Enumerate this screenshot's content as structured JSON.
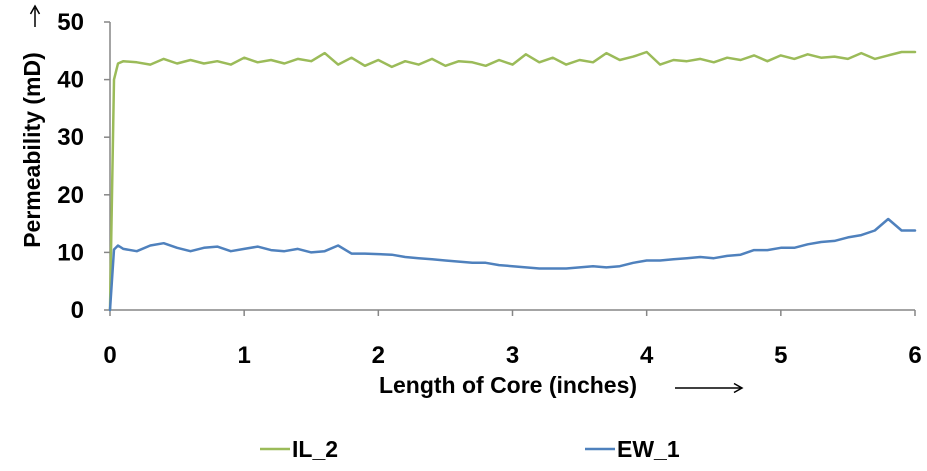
{
  "chart_data": {
    "type": "line",
    "title": "",
    "xlabel": "Length of Core (inches)",
    "ylabel": "Permeability (mD)",
    "xlim": [
      0,
      6
    ],
    "ylim": [
      0,
      50
    ],
    "xticks": [
      0,
      1,
      2,
      3,
      4,
      5,
      6
    ],
    "yticks": [
      0,
      10,
      20,
      30,
      40,
      50
    ],
    "grid": false,
    "legend_position": "bottom",
    "colors": {
      "IL_2": "#9bbb59",
      "EW_1": "#4f81bd"
    },
    "series": [
      {
        "name": "IL_2",
        "color": "#9bbb59",
        "x": [
          0,
          0.03,
          0.06,
          0.1,
          0.2,
          0.3,
          0.4,
          0.5,
          0.6,
          0.7,
          0.8,
          0.9,
          1.0,
          1.1,
          1.2,
          1.3,
          1.4,
          1.5,
          1.6,
          1.7,
          1.8,
          1.9,
          2.0,
          2.1,
          2.2,
          2.3,
          2.4,
          2.5,
          2.6,
          2.7,
          2.8,
          2.9,
          3.0,
          3.1,
          3.2,
          3.3,
          3.4,
          3.5,
          3.6,
          3.7,
          3.8,
          3.9,
          4.0,
          4.1,
          4.2,
          4.3,
          4.4,
          4.5,
          4.6,
          4.7,
          4.8,
          4.9,
          5.0,
          5.1,
          5.2,
          5.3,
          5.4,
          5.5,
          5.6,
          5.7,
          5.8,
          5.9,
          6.0
        ],
        "y": [
          0,
          40,
          42.8,
          43.2,
          43,
          42.6,
          43.6,
          42.8,
          43.4,
          42.8,
          43.2,
          42.6,
          43.8,
          43,
          43.4,
          42.8,
          43.6,
          43.2,
          44.6,
          42.6,
          43.8,
          42.4,
          43.4,
          42.2,
          43.2,
          42.6,
          43.6,
          42.4,
          43.2,
          43,
          42.4,
          43.4,
          42.6,
          44.4,
          43,
          43.8,
          42.6,
          43.4,
          43,
          44.6,
          43.4,
          44,
          44.8,
          42.6,
          43.4,
          43.2,
          43.6,
          43,
          43.8,
          43.4,
          44.2,
          43.2,
          44.2,
          43.6,
          44.4,
          43.8,
          44,
          43.6,
          44.6,
          43.6,
          44.2,
          44.8,
          44.8
        ]
      },
      {
        "name": "EW_1",
        "color": "#4f81bd",
        "x": [
          0,
          0.03,
          0.06,
          0.1,
          0.2,
          0.3,
          0.4,
          0.5,
          0.6,
          0.7,
          0.8,
          0.9,
          1.0,
          1.1,
          1.2,
          1.3,
          1.4,
          1.5,
          1.6,
          1.7,
          1.8,
          1.9,
          2.0,
          2.1,
          2.2,
          2.3,
          2.4,
          2.5,
          2.6,
          2.7,
          2.8,
          2.9,
          3.0,
          3.1,
          3.2,
          3.3,
          3.4,
          3.5,
          3.6,
          3.7,
          3.8,
          3.9,
          4.0,
          4.1,
          4.2,
          4.3,
          4.4,
          4.5,
          4.6,
          4.7,
          4.8,
          4.9,
          5.0,
          5.1,
          5.2,
          5.3,
          5.4,
          5.5,
          5.6,
          5.7,
          5.8,
          5.9,
          6.0
        ],
        "y": [
          0,
          10.5,
          11.2,
          10.6,
          10.2,
          11.2,
          11.6,
          10.8,
          10.2,
          10.8,
          11,
          10.2,
          10.6,
          11,
          10.4,
          10.2,
          10.6,
          10,
          10.2,
          11.2,
          9.8,
          9.8,
          9.7,
          9.6,
          9.2,
          9,
          8.8,
          8.6,
          8.4,
          8.2,
          8.2,
          7.8,
          7.6,
          7.4,
          7.2,
          7.2,
          7.2,
          7.4,
          7.6,
          7.4,
          7.6,
          8.2,
          8.6,
          8.6,
          8.8,
          9,
          9.2,
          9,
          9.4,
          9.6,
          10.4,
          10.4,
          10.8,
          10.8,
          11.4,
          11.8,
          12,
          12.6,
          13,
          13.8,
          15.8,
          13.8,
          13.8
        ]
      }
    ]
  }
}
